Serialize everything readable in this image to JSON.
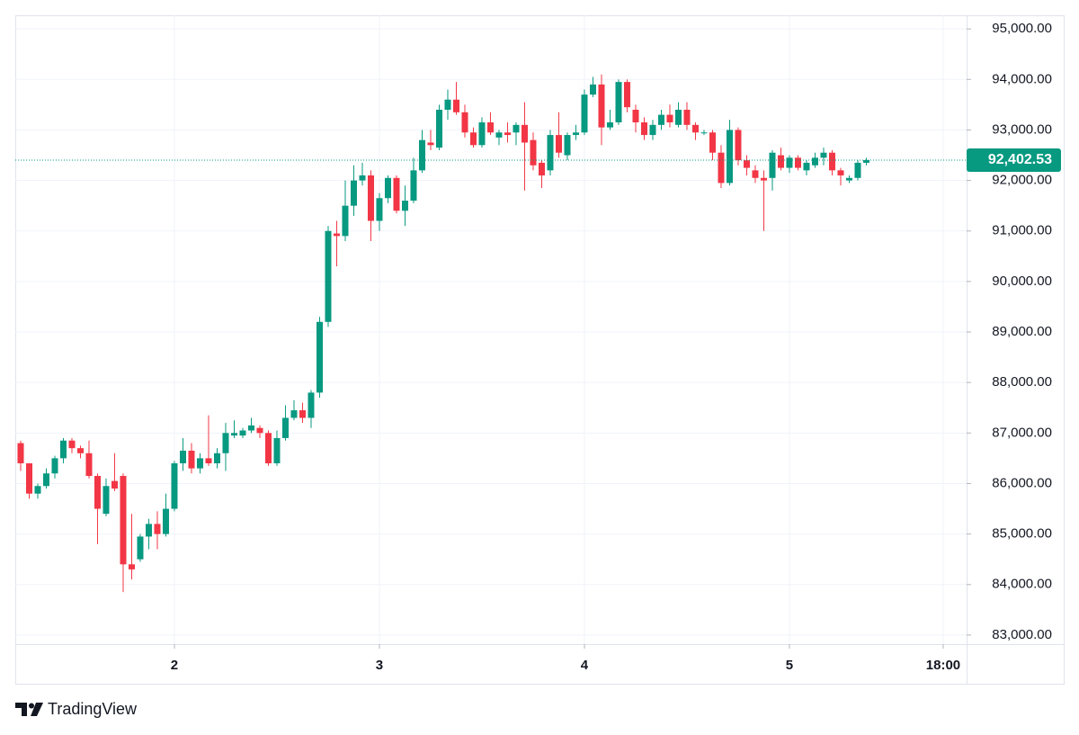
{
  "chart_data": {
    "type": "candlestick",
    "x": [
      6,
      7,
      8,
      9,
      10,
      11,
      12,
      13,
      14,
      15,
      16,
      17,
      18,
      19,
      20,
      21,
      22,
      23,
      24,
      25,
      26,
      27,
      28,
      29,
      30,
      31,
      32,
      33,
      34,
      35,
      36,
      37,
      38,
      39,
      40,
      41,
      42,
      43,
      44,
      45,
      46,
      47,
      48,
      49,
      50,
      51,
      52,
      53,
      54,
      55,
      56,
      57,
      58,
      59,
      60,
      61,
      62,
      63,
      64,
      65,
      66,
      67,
      68,
      69,
      70,
      71,
      72,
      73,
      74,
      75,
      76,
      77,
      78,
      79,
      80,
      81,
      82,
      83,
      84,
      85,
      86,
      87,
      88,
      89,
      90,
      91,
      92,
      93,
      94,
      95,
      96,
      97,
      98,
      99,
      100,
      101,
      102,
      103,
      104,
      105
    ],
    "open": [
      86800,
      86400,
      85800,
      85950,
      86200,
      86500,
      86850,
      86700,
      86600,
      86150,
      85400,
      86050,
      86150,
      84400,
      84500,
      84950,
      85200,
      85000,
      85500,
      86400,
      86650,
      86300,
      86500,
      86400,
      86600,
      86950,
      86950,
      87050,
      87100,
      87000,
      86400,
      86900,
      87300,
      87450,
      87300,
      87800,
      89200,
      90950,
      90900,
      91500,
      92000,
      92100,
      91200,
      91650,
      92050,
      91400,
      91600,
      92200,
      92750,
      92650,
      93400,
      93600,
      93350,
      92950,
      92700,
      93150,
      92850,
      92950,
      92950,
      93100,
      92800,
      92350,
      92200,
      92900,
      92500,
      92900,
      92950,
      93700,
      93900,
      93050,
      93150,
      93950,
      93400,
      93150,
      92900,
      93100,
      93300,
      93100,
      93400,
      93100,
      92950,
      92950,
      92550,
      91950,
      93000,
      92400,
      92200,
      92050,
      92050,
      92500,
      92250,
      92450,
      92200,
      92300,
      92450,
      92550,
      92200,
      92000,
      92050,
      92350
    ],
    "high": [
      86850,
      86400,
      86000,
      86300,
      86550,
      86900,
      86900,
      86750,
      86850,
      86200,
      86100,
      86600,
      86200,
      85400,
      85000,
      85300,
      85450,
      85800,
      86450,
      86900,
      86800,
      86600,
      87350,
      86700,
      87200,
      87250,
      87100,
      87300,
      87150,
      87050,
      87050,
      87550,
      87650,
      87600,
      87850,
      89300,
      91100,
      91200,
      92000,
      92300,
      92350,
      92200,
      91750,
      92100,
      92100,
      91900,
      92450,
      93000,
      93000,
      93500,
      93800,
      93950,
      93500,
      93050,
      93250,
      93350,
      93000,
      93150,
      93150,
      93550,
      92950,
      92400,
      93000,
      93350,
      92950,
      93100,
      93800,
      94050,
      94100,
      93400,
      94000,
      94000,
      93500,
      93250,
      93200,
      93400,
      93500,
      93550,
      93550,
      93150,
      93000,
      93000,
      92700,
      93200,
      93050,
      92500,
      92300,
      92200,
      92600,
      92650,
      92500,
      92500,
      92400,
      92550,
      92650,
      92600,
      92250,
      92100,
      92400,
      92450
    ],
    "low": [
      86250,
      85700,
      85700,
      85900,
      86100,
      86400,
      86600,
      86500,
      86100,
      84800,
      85350,
      85850,
      83850,
      84100,
      84450,
      84700,
      84700,
      84950,
      85450,
      86250,
      86200,
      86200,
      86350,
      86300,
      86250,
      86900,
      86900,
      87000,
      86900,
      86350,
      86350,
      86850,
      87250,
      87200,
      87100,
      87700,
      89100,
      90300,
      90800,
      91300,
      91900,
      90800,
      91000,
      91550,
      91350,
      91100,
      91550,
      92150,
      92600,
      92600,
      93200,
      93300,
      92850,
      92650,
      92650,
      92900,
      92700,
      92750,
      92700,
      91800,
      92200,
      91850,
      92100,
      92450,
      92400,
      92800,
      92900,
      93650,
      92700,
      93000,
      93100,
      93350,
      92950,
      92800,
      92800,
      93000,
      93050,
      93050,
      93000,
      92800,
      92900,
      92400,
      91850,
      91900,
      92300,
      92100,
      91950,
      91000,
      91800,
      92200,
      92150,
      92200,
      92100,
      92250,
      92300,
      92100,
      91900,
      91950,
      92000,
      92300
    ],
    "close": [
      86400,
      85800,
      85950,
      86200,
      86500,
      86850,
      86700,
      86600,
      86150,
      85500,
      85950,
      85900,
      84400,
      84300,
      84950,
      85200,
      85000,
      85500,
      86400,
      86650,
      86300,
      86500,
      86400,
      86600,
      87000,
      87000,
      87050,
      87150,
      87000,
      86400,
      86900,
      87300,
      87450,
      87300,
      87800,
      89200,
      91000,
      90900,
      91500,
      92000,
      92100,
      91200,
      91650,
      92050,
      91400,
      91600,
      92200,
      92800,
      92700,
      93400,
      93600,
      93350,
      92950,
      92700,
      93150,
      92950,
      92950,
      92900,
      93100,
      92750,
      92300,
      92100,
      92900,
      92550,
      92900,
      92950,
      93700,
      93900,
      93050,
      93150,
      93950,
      93450,
      93150,
      92900,
      93100,
      93300,
      93150,
      93400,
      93100,
      92950,
      92950,
      92550,
      91950,
      93000,
      92400,
      92250,
      92050,
      92000,
      92550,
      92250,
      92450,
      92250,
      92350,
      92450,
      92550,
      92200,
      92100,
      92050,
      92350,
      92402.53
    ],
    "up_color": "#089981",
    "down_color": "#f23645",
    "xlim": [
      5.37,
      116.74
    ],
    "xticks": [
      {
        "value": 24,
        "label": "2"
      },
      {
        "value": 48,
        "label": "3"
      },
      {
        "value": 72,
        "label": "4"
      },
      {
        "value": 96,
        "label": "5"
      },
      {
        "value": 114,
        "label": "18:00"
      }
    ],
    "ylim": [
      82820,
      95270
    ],
    "yticks": [
      {
        "value": 83000,
        "label": "83,000.00"
      },
      {
        "value": 84000,
        "label": "84,000.00"
      },
      {
        "value": 85000,
        "label": "85,000.00"
      },
      {
        "value": 86000,
        "label": "86,000.00"
      },
      {
        "value": 87000,
        "label": "87,000.00"
      },
      {
        "value": 88000,
        "label": "88,000.00"
      },
      {
        "value": 89000,
        "label": "89,000.00"
      },
      {
        "value": 90000,
        "label": "90,000.00"
      },
      {
        "value": 91000,
        "label": "91,000.00"
      },
      {
        "value": 92000,
        "label": "92,000.00"
      },
      {
        "value": 93000,
        "label": "93,000.00"
      },
      {
        "value": 94000,
        "label": "94,000.00"
      },
      {
        "value": 95000,
        "label": "95,000.00"
      }
    ],
    "grid": true,
    "last_price": {
      "value": 92402.53,
      "label": "92,402.53"
    },
    "branding": "TradingView"
  }
}
